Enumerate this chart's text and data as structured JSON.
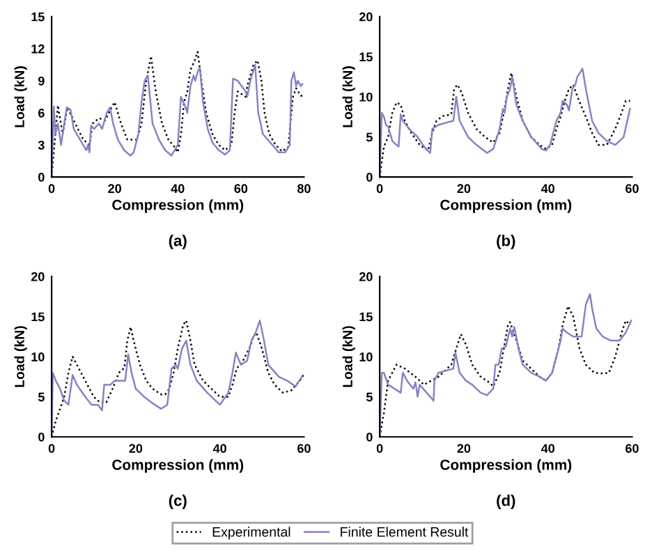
{
  "chart_data": [
    {
      "type": "line",
      "title": "(a)",
      "xlabel": "Compression (mm)",
      "ylabel": "Load (kN)",
      "xlim": [
        0,
        80
      ],
      "xticks": [
        0,
        20,
        40,
        60,
        80
      ],
      "ylim": [
        0,
        15
      ],
      "yticks": [
        0,
        3,
        6,
        9,
        12,
        15
      ],
      "grid": false,
      "legend": "bottom",
      "series": [
        {
          "name": "Experimental",
          "color": "#000000",
          "line_style": "dotted",
          "x": [
            0,
            2,
            3.5,
            5,
            10,
            12,
            13,
            15,
            17,
            19,
            20,
            22,
            24,
            27,
            28.5,
            30,
            31.5,
            33,
            35,
            37,
            39,
            40,
            41,
            42,
            43,
            44,
            45.5,
            46.3,
            47.5,
            49,
            51,
            53,
            55,
            57,
            58,
            59,
            61.5,
            62,
            64,
            65.3,
            66.5,
            67.5,
            69,
            71,
            73,
            75,
            75.7,
            76.5,
            77.5,
            79,
            79.5
          ],
          "values": [
            0,
            6.7,
            4,
            6.5,
            3.5,
            3,
            5,
            5.5,
            5.3,
            6.5,
            7,
            5,
            3.5,
            3.5,
            5,
            9,
            11.3,
            8,
            5,
            3.5,
            2.8,
            2.3,
            4,
            7,
            8,
            10,
            11,
            11.7,
            9,
            6,
            4,
            3,
            2.5,
            3,
            6,
            8,
            7.5,
            8.5,
            10.5,
            10.9,
            9,
            6,
            4,
            3,
            2.4,
            2.8,
            5,
            7.5,
            8.3,
            7.6,
            7.6
          ]
        },
        {
          "name": "Finite Element Result",
          "color": "#8484c4",
          "line_style": "solid",
          "x": [
            0,
            0.7,
            1.2,
            2,
            3,
            4,
            4.8,
            6,
            7,
            9,
            10,
            11,
            11.5,
            12,
            12.5,
            13.5,
            15,
            16,
            17.5,
            18.5,
            19.5,
            21,
            23,
            25,
            26,
            27.5,
            28.5,
            29.5,
            30.5,
            31,
            32,
            34,
            36,
            38,
            40,
            41,
            42.5,
            43,
            44,
            45,
            45.5,
            46.5,
            47,
            48,
            49.5,
            51,
            53,
            55,
            56.5,
            57.5,
            59,
            61.5,
            62,
            63,
            64.5,
            65.5,
            67,
            70,
            72,
            74,
            75.5,
            76,
            76.8,
            77.5,
            78,
            79,
            79.5
          ],
          "values": [
            0,
            6.6,
            4,
            5,
            3,
            5,
            6.5,
            6.3,
            4.5,
            3.5,
            3,
            2.5,
            3,
            2.3,
            4.8,
            4.5,
            5,
            4.5,
            6,
            6.5,
            5,
            3.5,
            2.5,
            2,
            2.3,
            4,
            7,
            9,
            9.5,
            8,
            5,
            3.5,
            2.5,
            2,
            3,
            7.5,
            6.5,
            6,
            8.5,
            9.5,
            9,
            10,
            10.2,
            7,
            4.5,
            3.2,
            2.5,
            2.1,
            2.5,
            9.2,
            9,
            8,
            7.5,
            9,
            10.5,
            6,
            4,
            3,
            2.3,
            2.3,
            3,
            9,
            9.8,
            8.5,
            9,
            8.5,
            8.7
          ]
        }
      ]
    },
    {
      "type": "line",
      "title": "(b)",
      "xlabel": "Compression (mm)",
      "ylabel": "Load (kN)",
      "xlim": [
        0,
        60
      ],
      "xticks": [
        0,
        20,
        40,
        60
      ],
      "ylim": [
        0,
        20
      ],
      "yticks": [
        0,
        5,
        10,
        15,
        20
      ],
      "grid": false,
      "series": [
        {
          "color": "#000000",
          "line_style": "dotted",
          "x": [
            0,
            1,
            2,
            3,
            4,
            5,
            6,
            7.5,
            9.5,
            11.5,
            12.5,
            13.5,
            15,
            17,
            17.7,
            18.5,
            19.5,
            21,
            23,
            25,
            27,
            28.5,
            29.5,
            30.5,
            31.3,
            32.5,
            34,
            36,
            38,
            39.5,
            41,
            42,
            43,
            44,
            45,
            46,
            47,
            49,
            50.5,
            52,
            54,
            56,
            57.5,
            58.5,
            59.5
          ],
          "values": [
            0,
            3.8,
            5,
            8,
            9.3,
            9,
            7,
            5.5,
            4,
            3.3,
            5.5,
            7,
            7.6,
            7.8,
            11,
            11.5,
            10.5,
            8,
            6,
            5,
            4.3,
            5.5,
            8,
            11,
            13,
            10,
            7,
            5,
            4,
            3.5,
            4,
            6,
            7.5,
            9.5,
            11,
            11.5,
            10,
            7.5,
            5.5,
            4,
            4,
            6,
            8,
            9.5,
            9.5
          ]
        },
        {
          "color": "#8484c4",
          "line_style": "solid",
          "x": [
            0,
            0.5,
            1,
            1.5,
            2,
            3,
            4,
            4.5,
            5,
            5.5,
            7,
            9,
            10,
            11,
            12,
            12.5,
            14,
            16,
            17.5,
            18.2,
            19,
            21,
            23,
            25.5,
            27,
            28.5,
            29.3,
            29.7,
            30.2,
            31,
            31.5,
            32.5,
            34,
            36,
            38.5,
            39.5,
            40.5,
            42,
            43,
            43.5,
            44.5,
            45,
            45.8,
            46.5,
            47,
            48.2,
            49,
            50.5,
            52,
            54,
            56,
            58,
            59.5
          ],
          "values": [
            0,
            8,
            7.5,
            6.5,
            6.3,
            4.5,
            4,
            3.8,
            7.8,
            7,
            6,
            5,
            4.2,
            3.5,
            3,
            6,
            6.5,
            6.8,
            7,
            10,
            7,
            5,
            4,
            3,
            3.5,
            6,
            8.5,
            8,
            10,
            11,
            12.5,
            9,
            7,
            5,
            3.5,
            3.3,
            4,
            7,
            8,
            9.5,
            9,
            8.3,
            11,
            11.5,
            12.5,
            13.5,
            11,
            7,
            5.5,
            4.5,
            4,
            5,
            8.5
          ]
        }
      ]
    },
    {
      "type": "line",
      "title": "(c)",
      "xlabel": "Compression (mm)",
      "ylabel": "Load (kN)",
      "xlim": [
        0,
        60
      ],
      "xticks": [
        0,
        20,
        40,
        60
      ],
      "ylim": [
        0,
        20
      ],
      "yticks": [
        0,
        5,
        10,
        15,
        20
      ],
      "grid": false,
      "series": [
        {
          "color": "#000000",
          "line_style": "dotted",
          "x": [
            0,
            1,
            3,
            4,
            5,
            6,
            8,
            10,
            11.5,
            13,
            14.5,
            16,
            17.3,
            18,
            18.8,
            19.5,
            21,
            22.5,
            24,
            26,
            27,
            28,
            29,
            30,
            31.3,
            32,
            33,
            34,
            36,
            38,
            40,
            42,
            43,
            44,
            45.5,
            47,
            48,
            48.7,
            50,
            51.5,
            53,
            55,
            57,
            59,
            60
          ],
          "values": [
            0,
            2,
            5,
            8,
            10,
            9,
            7,
            5,
            4.3,
            4.3,
            6,
            8,
            8.6,
            12,
            13.7,
            12,
            9,
            7,
            6,
            5.3,
            5.3,
            6,
            8,
            11,
            14,
            14.5,
            12,
            9,
            7,
            6,
            5,
            5,
            6.5,
            8.5,
            9.5,
            11,
            12.5,
            13,
            11,
            8,
            6.5,
            5.5,
            5.8,
            7,
            7.8
          ]
        },
        {
          "color": "#8484c4",
          "line_style": "solid",
          "x": [
            0,
            0.3,
            1,
            2,
            3,
            4,
            5,
            6,
            8,
            9.5,
            11,
            12,
            12.5,
            14,
            15,
            17.5,
            18.2,
            19,
            20,
            22,
            24,
            26,
            27.5,
            28.5,
            29.5,
            30,
            31,
            32,
            33,
            34.5,
            37,
            39,
            40,
            42,
            43,
            43.8,
            45,
            46.5,
            47.5,
            48.5,
            49.5,
            50.5,
            51.5,
            54,
            56,
            58,
            59.5
          ],
          "values": [
            0,
            8,
            7,
            6,
            4.5,
            4,
            7.7,
            6.5,
            5,
            4,
            4,
            3.3,
            6.5,
            6.5,
            7,
            7,
            10.3,
            8,
            6,
            5,
            4.2,
            3.5,
            4,
            8.5,
            9,
            8.5,
            11,
            12,
            9,
            7,
            5.5,
            4.5,
            4,
            5.5,
            8,
            10.5,
            9,
            9.5,
            12,
            13,
            14.5,
            12,
            9,
            7.5,
            7,
            6.3,
            7.5
          ]
        }
      ]
    },
    {
      "type": "line",
      "title": "(d)",
      "xlabel": "Compression (mm)",
      "ylabel": "Load (kN)",
      "xlim": [
        0,
        60
      ],
      "xticks": [
        0,
        20,
        40,
        60
      ],
      "ylim": [
        0,
        20
      ],
      "yticks": [
        0,
        5,
        10,
        15,
        20
      ],
      "grid": false,
      "series": [
        {
          "color": "#000000",
          "line_style": "dotted",
          "x": [
            0,
            1,
            2,
            4,
            6,
            8.5,
            10.5,
            14,
            17,
            18.5,
            19.3,
            20.5,
            22,
            24,
            26,
            27,
            28.5,
            29.5,
            30.5,
            31,
            32.5,
            34,
            36,
            38,
            39.5,
            41,
            42.5,
            43.5,
            44.8,
            46,
            47.5,
            49,
            51,
            53,
            54.5,
            56,
            57.5,
            58.5,
            59.5
          ],
          "values": [
            0,
            3,
            7,
            9,
            8.5,
            7.5,
            6.5,
            7.5,
            9,
            11.5,
            12.8,
            11.5,
            9,
            7.5,
            6.8,
            6.3,
            8,
            11,
            14,
            14.3,
            12,
            9.5,
            8.5,
            7.5,
            7,
            8,
            11,
            14,
            16.3,
            15,
            11,
            9,
            8,
            7.9,
            8,
            10,
            13,
            14.5,
            14
          ]
        },
        {
          "color": "#8484c4",
          "line_style": "solid",
          "x": [
            0,
            0.5,
            1,
            2,
            3.5,
            5,
            5.5,
            6.5,
            8,
            8.5,
            9,
            9.5,
            12,
            12.8,
            13,
            14,
            16,
            17.5,
            18,
            19,
            20.5,
            22,
            24,
            25.5,
            27,
            27.5,
            28.3,
            29,
            30,
            31,
            31.5,
            32,
            33,
            34,
            36,
            38,
            39.5,
            41,
            42,
            43,
            43.5,
            44.5,
            46,
            48,
            49,
            50,
            50.5,
            51.5,
            53,
            55,
            57,
            58.5,
            59.8
          ],
          "values": [
            0,
            8,
            8,
            6.5,
            6,
            5.5,
            8,
            7,
            6,
            6.8,
            5,
            6.5,
            5,
            4.5,
            7,
            8,
            8.3,
            8.5,
            10.5,
            8,
            7,
            6.5,
            5.5,
            5.2,
            6,
            9,
            9,
            11,
            11.3,
            13.5,
            12.5,
            13.7,
            11,
            9,
            8,
            7.5,
            7,
            8,
            10,
            12,
            13.5,
            13,
            12.5,
            12.5,
            16.5,
            17.8,
            16,
            13.5,
            12.5,
            12,
            12,
            13,
            14.5
          ]
        }
      ]
    }
  ]
}
